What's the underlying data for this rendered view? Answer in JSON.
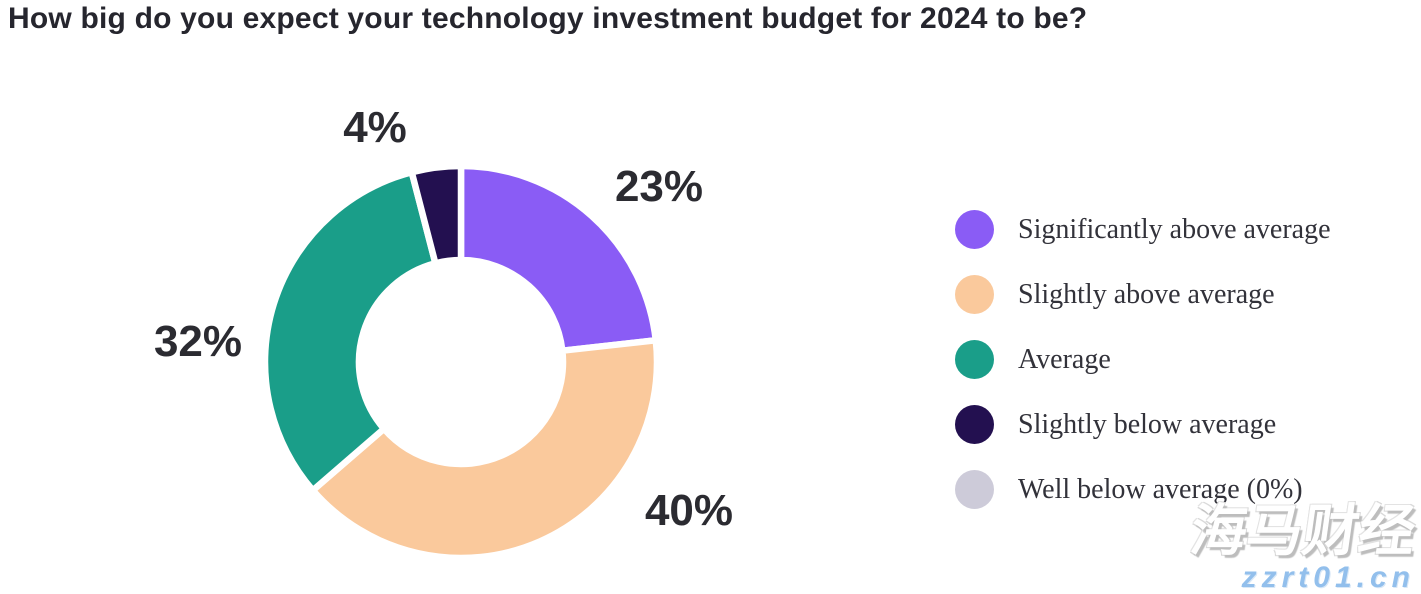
{
  "title": "How big do you expect your technology investment budget for 2024 to be?",
  "chart_data": {
    "type": "pie",
    "subtype": "donut",
    "title": "How big do you expect your technology investment budget for 2024 to be?",
    "unit": "%",
    "direction": "clockwise",
    "start_angle_deg": 0,
    "inner_radius_ratio": 0.52,
    "legend_position": "right",
    "slices": [
      {
        "label": "Significantly above average",
        "value": 23,
        "display": "23%",
        "color": "#8a5cf5"
      },
      {
        "label": "Slightly above average",
        "value": 40,
        "display": "40%",
        "color": "#fac99c"
      },
      {
        "label": "Average",
        "value": 32,
        "display": "32%",
        "color": "#1a9e89"
      },
      {
        "label": "Slightly below average",
        "value": 4,
        "display": "4%",
        "color": "#231050"
      },
      {
        "label": "Well below average",
        "value": 0,
        "display": "0%",
        "color": "#cdcbd9"
      }
    ]
  },
  "legend": {
    "items": [
      {
        "label": "Significantly above average",
        "color": "#8a5cf5"
      },
      {
        "label": "Slightly above average",
        "color": "#fac99c"
      },
      {
        "label": "Average",
        "color": "#1a9e89"
      },
      {
        "label": "Slightly below average",
        "color": "#231050"
      },
      {
        "label": "Well below average (0%)",
        "color": "#cdcbd9"
      }
    ]
  },
  "watermark": {
    "brand": "海马财经",
    "url": "zzrt01.cn",
    "brand_color": "#ffffff",
    "url_color": "#92bfec"
  }
}
